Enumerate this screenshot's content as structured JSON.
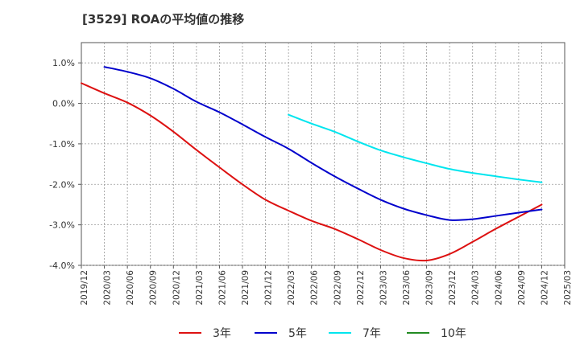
{
  "chart_data": {
    "type": "line",
    "title": "[3529]  ROAの平均値の推移",
    "xlabel": "",
    "ylabel": "",
    "x_ticks": [
      "2019/12",
      "2020/03",
      "2020/06",
      "2020/09",
      "2020/12",
      "2021/03",
      "2021/06",
      "2021/09",
      "2021/12",
      "2022/03",
      "2022/06",
      "2022/09",
      "2022/12",
      "2023/03",
      "2023/06",
      "2023/09",
      "2023/12",
      "2024/03",
      "2024/06",
      "2024/09",
      "2024/12",
      "2025/03"
    ],
    "y_ticks": [
      1.0,
      0.0,
      -1.0,
      -2.0,
      -3.0,
      -4.0
    ],
    "y_tick_labels": [
      "1.0%",
      "0.0%",
      "-1.0%",
      "-2.0%",
      "-3.0%",
      "-4.0%"
    ],
    "ylim": [
      -4.0,
      1.5
    ],
    "grid": true,
    "legend_position": "bottom",
    "series": [
      {
        "name": "3年",
        "color": "#dd1111",
        "points": [
          [
            "2019/12",
            0.5
          ],
          [
            "2020/03",
            0.25
          ],
          [
            "2020/06",
            0.02
          ],
          [
            "2020/09",
            -0.3
          ],
          [
            "2020/12",
            -0.7
          ],
          [
            "2021/03",
            -1.15
          ],
          [
            "2021/06",
            -1.58
          ],
          [
            "2021/09",
            -2.0
          ],
          [
            "2021/12",
            -2.38
          ],
          [
            "2022/03",
            -2.65
          ],
          [
            "2022/06",
            -2.9
          ],
          [
            "2022/09",
            -3.1
          ],
          [
            "2022/12",
            -3.35
          ],
          [
            "2023/03",
            -3.62
          ],
          [
            "2023/06",
            -3.82
          ],
          [
            "2023/09",
            -3.88
          ],
          [
            "2023/12",
            -3.72
          ],
          [
            "2024/03",
            -3.42
          ],
          [
            "2024/06",
            -3.1
          ],
          [
            "2024/09",
            -2.8
          ],
          [
            "2024/12",
            -2.5
          ]
        ]
      },
      {
        "name": "5年",
        "color": "#0000cc",
        "points": [
          [
            "2020/03",
            0.9
          ],
          [
            "2020/06",
            0.78
          ],
          [
            "2020/09",
            0.62
          ],
          [
            "2020/12",
            0.36
          ],
          [
            "2021/03",
            0.04
          ],
          [
            "2021/06",
            -0.22
          ],
          [
            "2021/09",
            -0.52
          ],
          [
            "2021/12",
            -0.83
          ],
          [
            "2022/03",
            -1.12
          ],
          [
            "2022/06",
            -1.47
          ],
          [
            "2022/09",
            -1.8
          ],
          [
            "2022/12",
            -2.1
          ],
          [
            "2023/03",
            -2.38
          ],
          [
            "2023/06",
            -2.6
          ],
          [
            "2023/09",
            -2.76
          ],
          [
            "2023/12",
            -2.88
          ],
          [
            "2024/03",
            -2.86
          ],
          [
            "2024/06",
            -2.78
          ],
          [
            "2024/09",
            -2.7
          ],
          [
            "2024/12",
            -2.62
          ]
        ]
      },
      {
        "name": "7年",
        "color": "#00e5ee",
        "points": [
          [
            "2022/03",
            -0.28
          ],
          [
            "2022/06",
            -0.5
          ],
          [
            "2022/09",
            -0.7
          ],
          [
            "2022/12",
            -0.94
          ],
          [
            "2023/03",
            -1.16
          ],
          [
            "2023/06",
            -1.33
          ],
          [
            "2023/09",
            -1.48
          ],
          [
            "2023/12",
            -1.62
          ],
          [
            "2024/03",
            -1.72
          ],
          [
            "2024/06",
            -1.8
          ],
          [
            "2024/09",
            -1.88
          ],
          [
            "2024/12",
            -1.95
          ]
        ]
      },
      {
        "name": "10年",
        "color": "#228b22",
        "points": []
      }
    ]
  }
}
